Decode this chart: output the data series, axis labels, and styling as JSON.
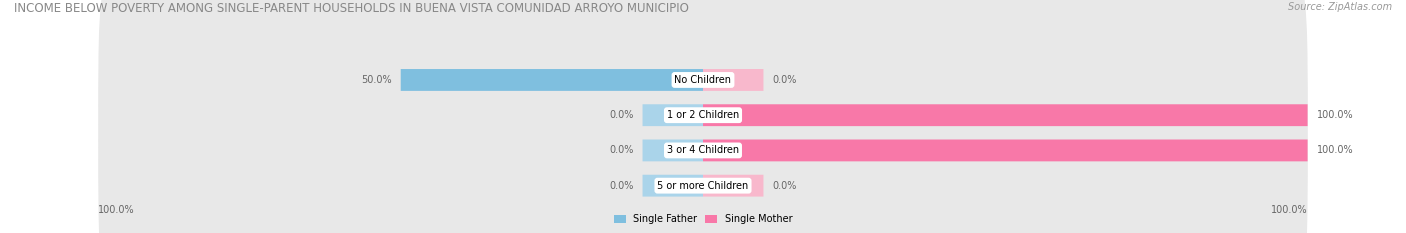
{
  "title": "INCOME BELOW POVERTY AMONG SINGLE-PARENT HOUSEHOLDS IN BUENA VISTA COMUNIDAD ARROYO MUNICIPIO",
  "source": "Source: ZipAtlas.com",
  "categories": [
    "No Children",
    "1 or 2 Children",
    "3 or 4 Children",
    "5 or more Children"
  ],
  "single_father": [
    50.0,
    0.0,
    0.0,
    0.0
  ],
  "single_mother": [
    0.0,
    100.0,
    100.0,
    0.0
  ],
  "father_color": "#7fbfdf",
  "mother_color": "#f878a8",
  "mother_color_stub": "#f8b8cc",
  "father_color_stub": "#aad4ea",
  "row_bg": "#e8e8e8",
  "title_color": "#888888",
  "label_color": "#666666",
  "title_fontsize": 8.5,
  "label_fontsize": 7.0,
  "cat_fontsize": 7.0,
  "source_fontsize": 7.0,
  "xlim": 100,
  "stub_size": 10,
  "figsize": [
    14.06,
    2.33
  ],
  "dpi": 100
}
